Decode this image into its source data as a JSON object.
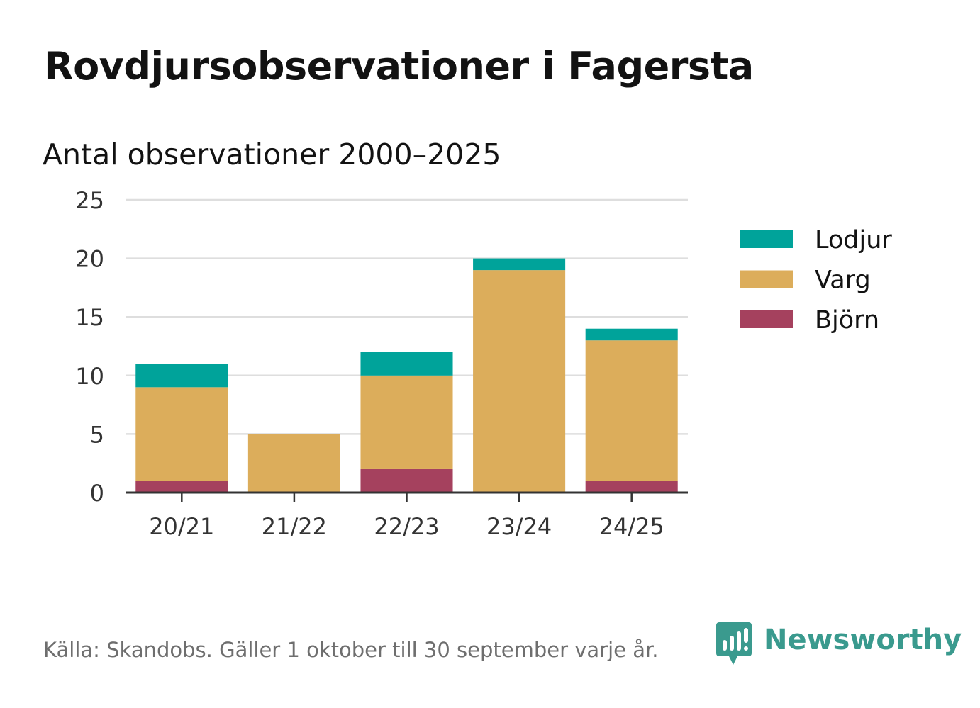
{
  "title": "Rovdjursobservationer i Fagersta",
  "subtitle": "Antal observationer 2000–2025",
  "source": "Källa: Skandobs. Gäller 1 oktober till 30 september varje år.",
  "brand": {
    "name": "Newsworthy",
    "icon": "newsworthy-logo-icon",
    "color": "#3a9a8e"
  },
  "chart_data": {
    "type": "bar",
    "stacked": true,
    "title": "Antal observationer 2000–2025",
    "xlabel": "",
    "ylabel": "",
    "ylim": [
      0,
      25
    ],
    "yticks": [
      0,
      5,
      10,
      15,
      20,
      25
    ],
    "grid": true,
    "legend_position": "right",
    "categories": [
      "20/21",
      "21/22",
      "22/23",
      "23/24",
      "24/25"
    ],
    "series": [
      {
        "name": "Björn",
        "color": "#a5415e",
        "values": [
          1,
          0,
          2,
          0,
          1
        ]
      },
      {
        "name": "Varg",
        "color": "#dcad5b",
        "values": [
          8,
          5,
          8,
          19,
          12
        ]
      },
      {
        "name": "Lodjur",
        "color": "#00a39a",
        "values": [
          2,
          0,
          2,
          1,
          1
        ]
      }
    ],
    "legend_order": [
      "Lodjur",
      "Varg",
      "Björn"
    ]
  }
}
